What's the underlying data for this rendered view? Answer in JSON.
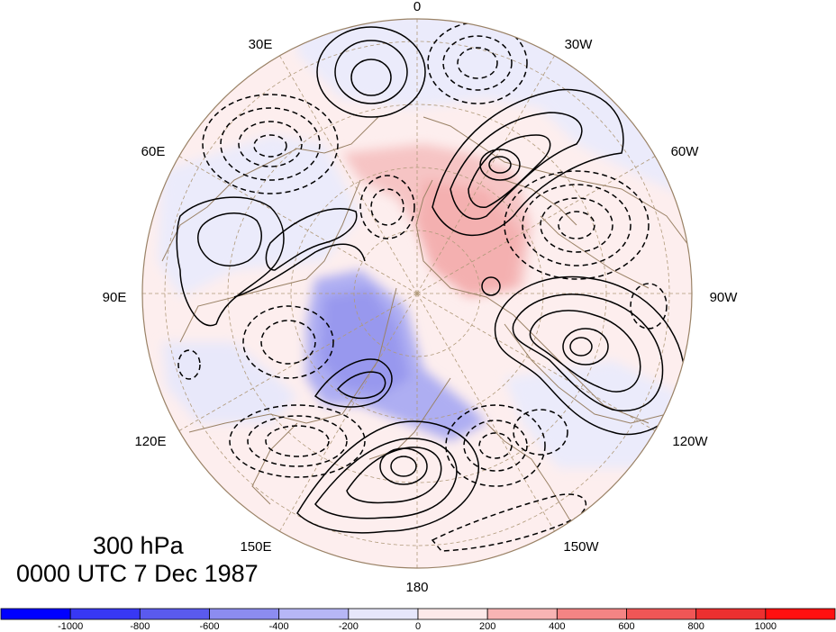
{
  "level_label": "300 hPa",
  "time_label": "0000 UTC 7 Dec 1987",
  "longitude_labels": [
    "0",
    "30W",
    "60W",
    "90W",
    "120W",
    "150W",
    "180",
    "150E",
    "120E",
    "90E",
    "60E",
    "30E"
  ],
  "colorbar": {
    "tick_labels": [
      "-1000",
      "-800",
      "-600",
      "-400",
      "-200",
      "0",
      "200",
      "400",
      "600",
      "800",
      "1000"
    ],
    "colors": [
      "#0000ff",
      "#3838f4",
      "#5a5aee",
      "#8c8cf0",
      "#b7b7f6",
      "#e6e6fb",
      "#fde9e9",
      "#f8b4b4",
      "#f48484",
      "#f05656",
      "#ec3030",
      "#ff1010"
    ]
  },
  "map": {
    "projection": "north-polar-stereographic",
    "contours": {
      "positive_style": "solid",
      "negative_style": "dashed",
      "color": "#000000"
    },
    "coastline_color": "#9a8266",
    "graticule_color": "#b09a7a"
  }
}
